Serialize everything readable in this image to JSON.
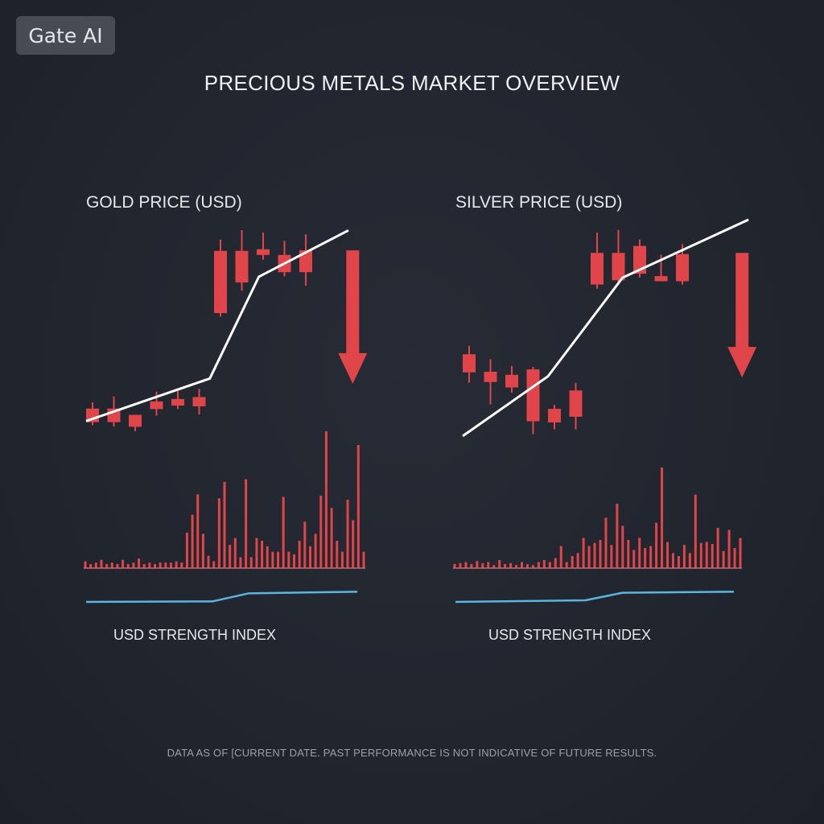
{
  "badge": {
    "label": "Gate AI"
  },
  "title": "PRECIOUS METALS MARKET OVERVIEW",
  "footnote": "DATA AS OF [CURRENT DATE. PAST PERFORMANCE IS NOT INDICATIVE OF FUTURE RESULTS.",
  "colors": {
    "background": "#21252e",
    "candle": "#e0454a",
    "trend_line": "#ffffff",
    "index_line": "#5bb6dd",
    "baseline": "#c46a70"
  },
  "chart_data": [
    {
      "type": "candlestick",
      "title": "GOLD PRICE (USD)",
      "index_label": "USD STRENGTH INDEX",
      "ylim": [
        0,
        100
      ],
      "candles": [
        {
          "o": 34.6,
          "h": 36.9,
          "l": 28.5,
          "c": 29.6
        },
        {
          "o": 34.6,
          "h": 39.0,
          "l": 28.0,
          "c": 29.6
        },
        {
          "o": 32.3,
          "h": 32.3,
          "l": 26.3,
          "c": 27.9
        },
        {
          "o": 37.2,
          "h": 40.8,
          "l": 32.0,
          "c": 34.4
        },
        {
          "o": 38.1,
          "h": 41.3,
          "l": 34.4,
          "c": 35.7
        },
        {
          "o": 38.8,
          "h": 41.8,
          "l": 32.4,
          "c": 35.4
        },
        {
          "o": 92.4,
          "h": 96.5,
          "l": 68.3,
          "c": 69.6
        },
        {
          "o": 92.4,
          "h": 100.0,
          "l": 77.8,
          "c": 80.8
        },
        {
          "o": 93.0,
          "h": 99.1,
          "l": 89.2,
          "c": 90.9
        },
        {
          "o": 90.9,
          "h": 96.1,
          "l": 83.1,
          "c": 84.6
        },
        {
          "o": 92.6,
          "h": 98.5,
          "l": 79.6,
          "c": 84.6
        }
      ],
      "trend": [
        [
          0,
          30.0
        ],
        [
          5.8,
          45.6
        ],
        [
          8.1,
          82.9
        ],
        [
          12.3,
          99.9
        ]
      ],
      "arrow": {
        "x": 12.2,
        "from": 92.6,
        "to": 43.7
      },
      "volume": [
        5,
        3,
        4,
        6,
        3,
        4,
        3,
        6,
        3,
        4,
        7,
        3,
        4,
        3,
        4,
        4,
        4,
        5,
        4,
        26,
        39,
        54,
        25,
        9,
        5,
        51,
        63,
        17,
        22,
        8,
        65,
        8,
        22,
        20,
        16,
        12,
        12,
        52,
        12,
        10,
        20,
        34,
        16,
        25,
        53,
        100,
        44,
        20,
        12,
        50,
        35,
        90,
        12
      ],
      "usd_index": [
        [
          0,
          30
        ],
        [
          7,
          32
        ],
        [
          9,
          62
        ],
        [
          15,
          68
        ]
      ]
    },
    {
      "type": "candlestick",
      "title": "SILVER PRICE (USD)",
      "index_label": "USD STRENGTH INDEX",
      "ylim": [
        0,
        100
      ],
      "candles": [
        {
          "o": 55.4,
          "h": 58.2,
          "l": 46.0,
          "c": 49.4
        },
        {
          "o": 49.6,
          "h": 53.8,
          "l": 38.8,
          "c": 46.2
        },
        {
          "o": 48.6,
          "h": 51.5,
          "l": 42.7,
          "c": 44.4
        },
        {
          "o": 50.4,
          "h": 51.2,
          "l": 28.9,
          "c": 33.2
        },
        {
          "o": 37.3,
          "h": 38.6,
          "l": 30.5,
          "c": 32.8
        },
        {
          "o": 43.4,
          "h": 45.9,
          "l": 30.5,
          "c": 34.7
        },
        {
          "o": 89.0,
          "h": 95.7,
          "l": 77.1,
          "c": 78.5
        },
        {
          "o": 89.0,
          "h": 96.6,
          "l": 78.5,
          "c": 79.9
        },
        {
          "o": 91.3,
          "h": 93.4,
          "l": 80.8,
          "c": 82.1
        },
        {
          "o": 81.3,
          "h": 88.4,
          "l": 79.9,
          "c": 79.6
        },
        {
          "o": 88.6,
          "h": 91.9,
          "l": 78.5,
          "c": 79.6
        }
      ],
      "trend": [
        [
          0,
          28.3
        ],
        [
          4.0,
          48.1
        ],
        [
          7.5,
          80.8
        ],
        [
          13.4,
          100.0
        ]
      ],
      "arrow": {
        "x": 12.8,
        "from": 89.0,
        "to": 47.7
      },
      "volume": [
        4,
        5,
        6,
        4,
        7,
        5,
        6,
        3,
        8,
        4,
        5,
        3,
        6,
        4,
        3,
        6,
        8,
        6,
        10,
        22,
        6,
        12,
        15,
        30,
        22,
        25,
        28,
        50,
        23,
        64,
        42,
        28,
        18,
        30,
        20,
        22,
        45,
        100,
        26,
        15,
        12,
        23,
        15,
        73,
        25,
        26,
        24,
        40,
        17,
        38,
        20,
        30
      ],
      "usd_index": [
        [
          0,
          30
        ],
        [
          7,
          36
        ],
        [
          9,
          64
        ],
        [
          15,
          68
        ]
      ]
    }
  ]
}
